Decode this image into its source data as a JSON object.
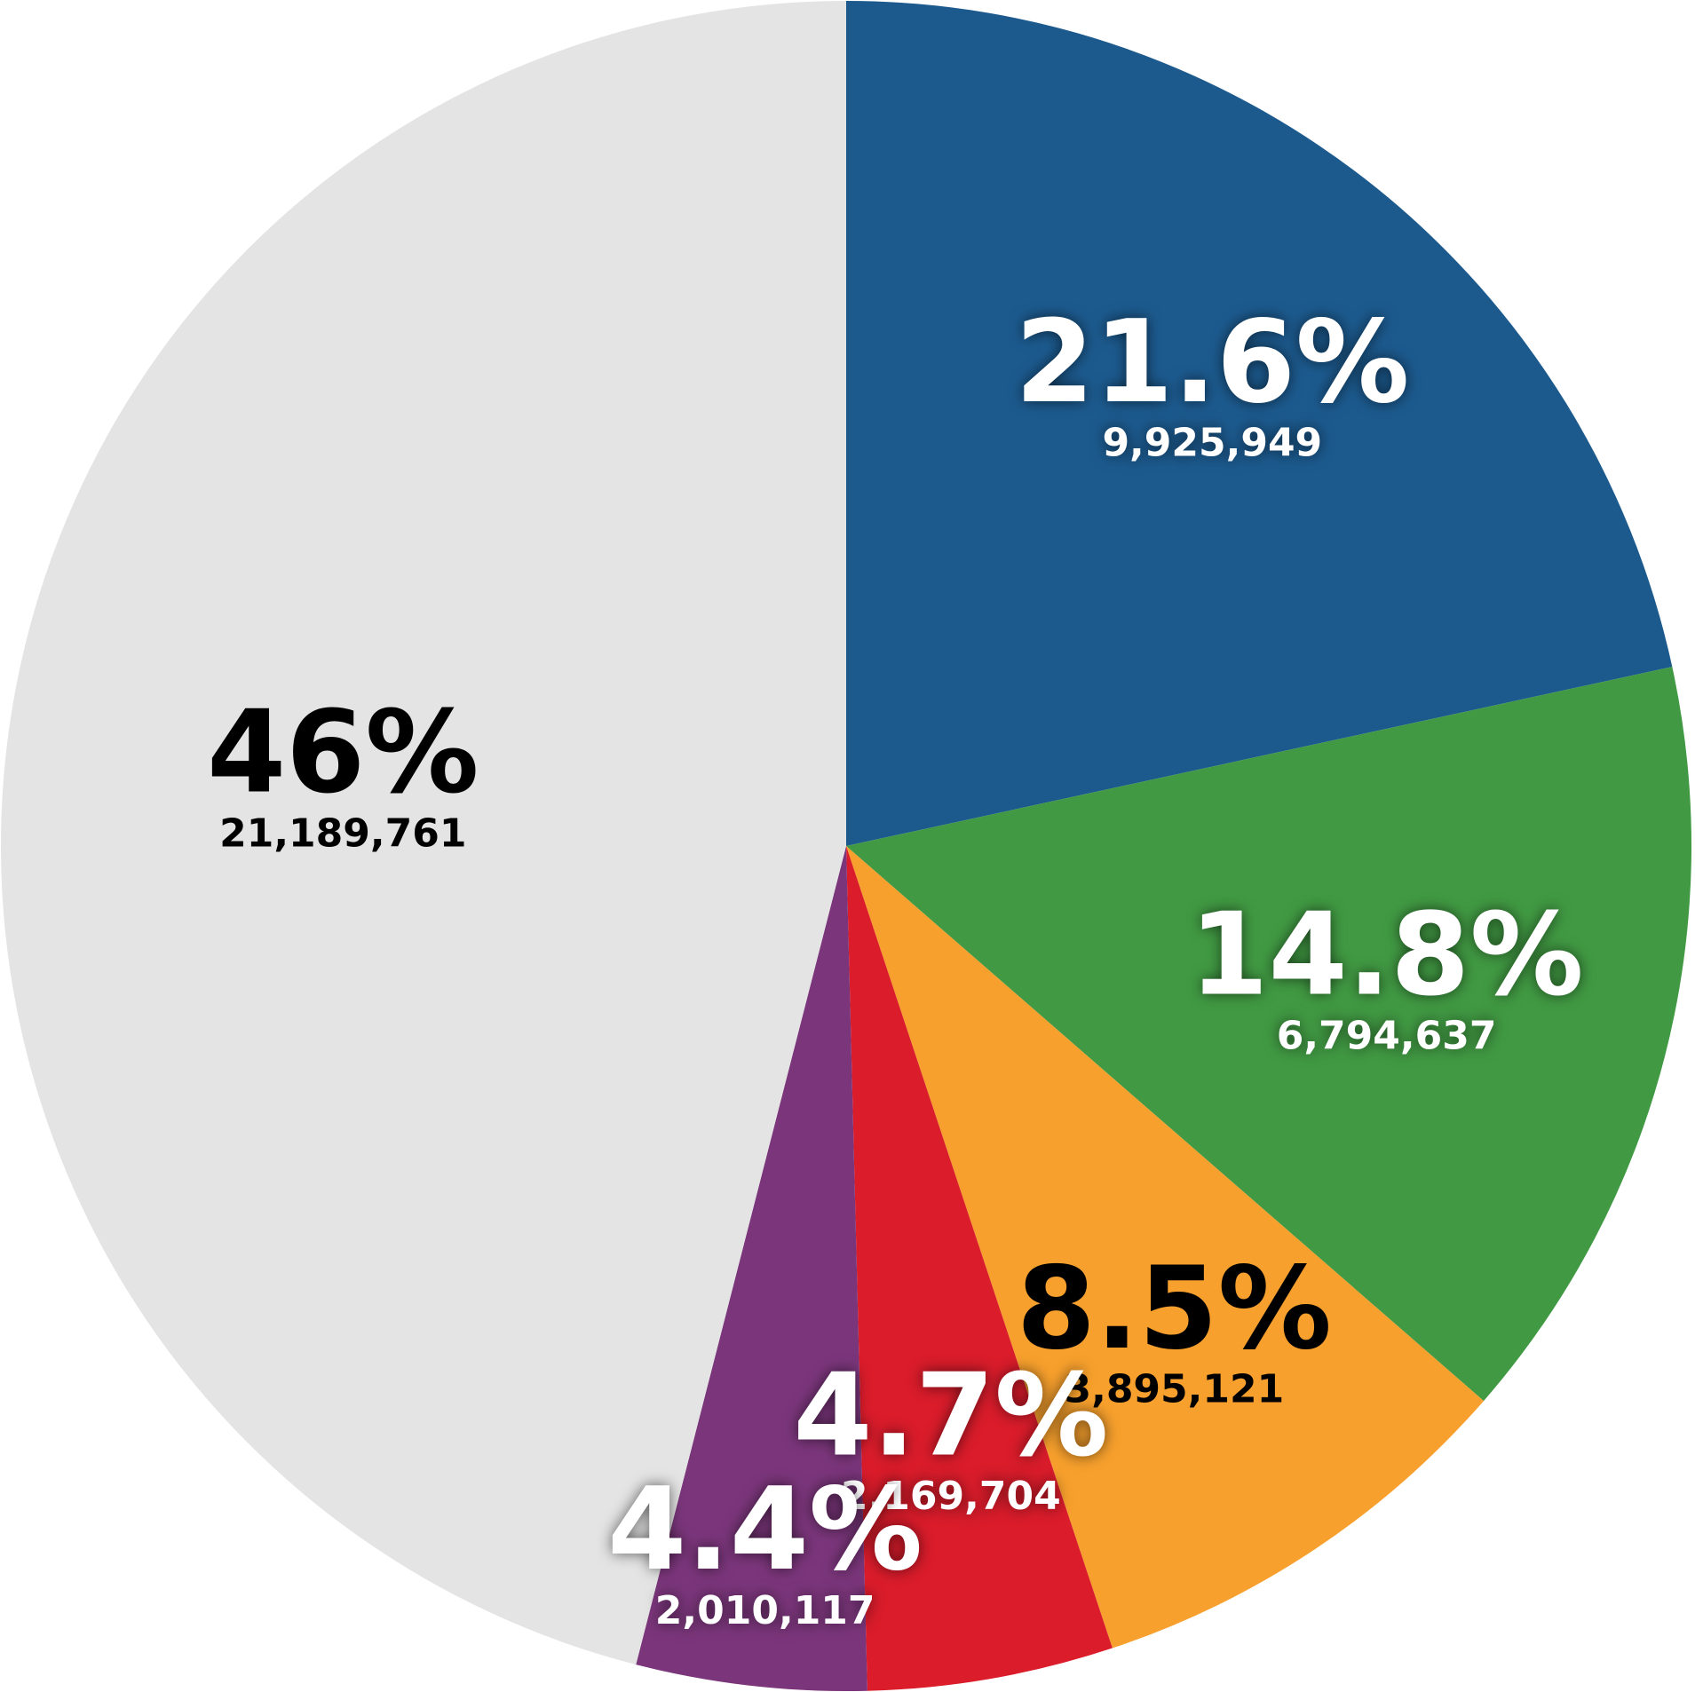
{
  "chart_data": {
    "type": "pie",
    "values": [
      21.6,
      14.8,
      8.5,
      4.7,
      4.4,
      46
    ],
    "value_labels": [
      "21.6%",
      "14.8%",
      "8.5%",
      "4.7%",
      "4.4%",
      "46%"
    ],
    "counts": [
      9925949,
      6794637,
      3895121,
      2169704,
      2010117,
      21189761
    ],
    "count_labels": [
      "9,925,949",
      "6,794,637",
      "3,895,121",
      "2,169,704",
      "2,010,117",
      "21,189,761"
    ],
    "colors": [
      "#1c5a8e",
      "#419a43",
      "#f7a02d",
      "#da1c2b",
      "#7b367b",
      "#e4e4e4"
    ]
  }
}
